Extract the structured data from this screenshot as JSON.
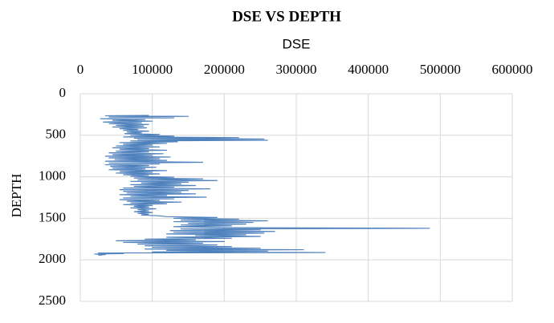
{
  "chart_data": {
    "type": "line",
    "title": "DSE VS DEPTH",
    "xlabel": "DSE",
    "ylabel": "DEPTH",
    "x_axis_position": "top",
    "y_inverted": true,
    "grid": true,
    "color": "#4f81bd",
    "xlim": [
      0,
      600000
    ],
    "xticks": [
      0,
      100000,
      200000,
      300000,
      400000,
      500000,
      600000
    ],
    "ylim": [
      0,
      2500
    ],
    "yticks": [
      0,
      500,
      1000,
      1500,
      2000,
      2500
    ],
    "x": [
      95000,
      35000,
      150000,
      40000,
      130000,
      28000,
      90000,
      45000,
      100000,
      32000,
      85000,
      40000,
      95000,
      50000,
      88000,
      45000,
      92000,
      55000,
      80000,
      60000,
      95000,
      65000,
      85000,
      62000,
      110000,
      70000,
      130000,
      60000,
      220000,
      75000,
      255000,
      80000,
      260000,
      70000,
      135000,
      55000,
      120000,
      60000,
      100000,
      50000,
      110000,
      45000,
      95000,
      55000,
      120000,
      50000,
      95000,
      40000,
      115000,
      45000,
      100000,
      35000,
      125000,
      40000,
      110000,
      48000,
      120000,
      35000,
      170000,
      40000,
      110000,
      35000,
      95000,
      42000,
      105000,
      45000,
      90000,
      40000,
      120000,
      55000,
      100000,
      50000,
      110000,
      60000,
      95000,
      70000,
      130000,
      75000,
      170000,
      80000,
      190000,
      70000,
      150000,
      85000,
      140000,
      70000,
      160000,
      75000,
      130000,
      60000,
      180000,
      55000,
      150000,
      60000,
      140000,
      65000,
      160000,
      55000,
      120000,
      70000,
      175000,
      60000,
      130000,
      55000,
      110000,
      65000,
      140000,
      70000,
      120000,
      60000,
      100000,
      75000,
      95000,
      70000,
      105000,
      80000,
      95000,
      75000,
      100000,
      80000,
      95000,
      85000,
      110000,
      120000,
      190000,
      130000,
      220000,
      140000,
      260000,
      130000,
      240000,
      150000,
      230000,
      140000,
      210000,
      130000,
      200000,
      485000,
      140000,
      250000,
      125000,
      270000,
      130000,
      255000,
      120000,
      230000,
      160000,
      250000,
      120000,
      210000,
      90000,
      160000,
      50000,
      200000,
      60000,
      170000,
      80000,
      190000,
      90000,
      210000,
      100000,
      250000,
      90000,
      310000,
      120000,
      260000,
      100000,
      340000,
      25000,
      60000,
      20000,
      35000,
      25000
    ],
    "y": [
      260,
      265,
      272,
      280,
      290,
      300,
      310,
      320,
      330,
      340,
      350,
      360,
      370,
      380,
      390,
      400,
      410,
      420,
      430,
      440,
      450,
      460,
      470,
      480,
      490,
      500,
      510,
      520,
      528,
      535,
      545,
      552,
      560,
      568,
      578,
      588,
      598,
      608,
      618,
      628,
      640,
      650,
      660,
      670,
      680,
      690,
      700,
      712,
      722,
      732,
      742,
      752,
      762,
      772,
      782,
      792,
      802,
      812,
      825,
      835,
      845,
      855,
      865,
      875,
      885,
      895,
      905,
      915,
      925,
      935,
      945,
      955,
      965,
      975,
      985,
      995,
      1005,
      1015,
      1025,
      1035,
      1045,
      1055,
      1065,
      1075,
      1085,
      1095,
      1105,
      1115,
      1125,
      1135,
      1145,
      1155,
      1165,
      1175,
      1185,
      1195,
      1205,
      1215,
      1225,
      1235,
      1245,
      1255,
      1265,
      1275,
      1285,
      1295,
      1305,
      1315,
      1325,
      1335,
      1345,
      1355,
      1365,
      1375,
      1385,
      1395,
      1410,
      1420,
      1430,
      1440,
      1450,
      1460,
      1470,
      1480,
      1490,
      1500,
      1510,
      1520,
      1530,
      1540,
      1550,
      1560,
      1570,
      1580,
      1590,
      1600,
      1612,
      1620,
      1628,
      1638,
      1648,
      1658,
      1668,
      1678,
      1688,
      1698,
      1708,
      1718,
      1728,
      1740,
      1750,
      1760,
      1770,
      1780,
      1790,
      1800,
      1810,
      1820,
      1830,
      1840,
      1850,
      1860,
      1870,
      1878,
      1886,
      1895,
      1905,
      1912,
      1918,
      1925,
      1930,
      1935,
      1945
    ]
  }
}
